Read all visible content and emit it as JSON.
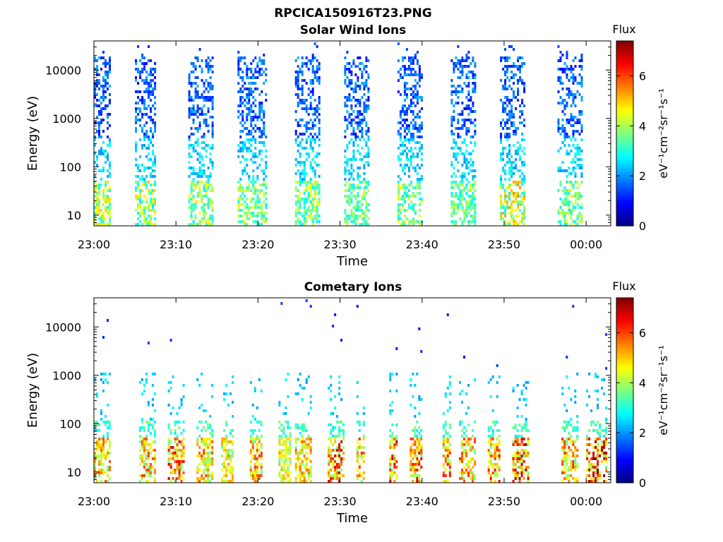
{
  "figure": {
    "title": "RPCICA150916T23.PNG"
  },
  "chart_data": [
    {
      "type": "heatmap",
      "title": "Solar Wind Ions",
      "xlabel": "Time",
      "ylabel": "Energy (eV)",
      "y_scale": "log",
      "xlim_minutes": [
        0,
        63
      ],
      "ylim": [
        6,
        40000
      ],
      "x_tick_labels": [
        "23:00",
        "23:10",
        "23:20",
        "23:30",
        "23:40",
        "23:50",
        "00:00"
      ],
      "x_tick_minutes": [
        0,
        10,
        20,
        30,
        40,
        50,
        60
      ],
      "y_tick_labels": [
        "10",
        "100",
        "1000",
        "10000"
      ],
      "y_tick_values": [
        10,
        100,
        1000,
        10000
      ],
      "colorbar": {
        "label": "Flux",
        "units": "eV⁻¹cm⁻²sr⁻¹s⁻¹",
        "range": [
          0,
          7.4
        ],
        "ticks": [
          0,
          2,
          4,
          6
        ],
        "colormap": "jet"
      },
      "bursts": [
        {
          "start_min": 0.0,
          "end_min": 2.0,
          "peak_flux": 5.0
        },
        {
          "start_min": 5.0,
          "end_min": 7.5,
          "peak_flux": 5.2
        },
        {
          "start_min": 11.5,
          "end_min": 14.5,
          "peak_flux": 4.8
        },
        {
          "start_min": 17.5,
          "end_min": 21.0,
          "peak_flux": 4.6
        },
        {
          "start_min": 24.5,
          "end_min": 27.5,
          "peak_flux": 4.6
        },
        {
          "start_min": 30.5,
          "end_min": 33.5,
          "peak_flux": 4.6
        },
        {
          "start_min": 37.0,
          "end_min": 40.0,
          "peak_flux": 4.6
        },
        {
          "start_min": 43.5,
          "end_min": 46.5,
          "peak_flux": 4.4
        },
        {
          "start_min": 49.5,
          "end_min": 52.5,
          "peak_flux": 5.6
        },
        {
          "start_min": 56.5,
          "end_min": 59.5,
          "peak_flux": 4.8
        }
      ]
    },
    {
      "type": "heatmap",
      "title": "Cometary Ions",
      "xlabel": "Time",
      "ylabel": "Energy (eV)",
      "y_scale": "log",
      "xlim_minutes": [
        0,
        63
      ],
      "ylim": [
        6,
        40000
      ],
      "x_tick_labels": [
        "23:00",
        "23:10",
        "23:20",
        "23:30",
        "23:40",
        "23:50",
        "00:00"
      ],
      "x_tick_minutes": [
        0,
        10,
        20,
        30,
        40,
        50,
        60
      ],
      "y_tick_labels": [
        "10",
        "100",
        "1000",
        "10000"
      ],
      "y_tick_values": [
        10,
        100,
        1000,
        10000
      ],
      "colorbar": {
        "label": "Flux",
        "units": "eV⁻¹cm⁻²sr⁻¹s⁻¹",
        "range": [
          0,
          7.4
        ],
        "ticks": [
          0,
          2,
          4,
          6
        ],
        "colormap": "jet"
      },
      "bursts": [
        {
          "start_min": 0.0,
          "end_min": 2.0,
          "peak_flux": 6.0
        },
        {
          "start_min": 5.5,
          "end_min": 7.5,
          "peak_flux": 6.2
        },
        {
          "start_min": 9.0,
          "end_min": 11.0,
          "peak_flux": 7.0
        },
        {
          "start_min": 12.5,
          "end_min": 14.5,
          "peak_flux": 6.0
        },
        {
          "start_min": 15.5,
          "end_min": 17.0,
          "peak_flux": 5.6
        },
        {
          "start_min": 19.0,
          "end_min": 20.5,
          "peak_flux": 6.2
        },
        {
          "start_min": 22.5,
          "end_min": 24.0,
          "peak_flux": 5.4
        },
        {
          "start_min": 24.5,
          "end_min": 26.5,
          "peak_flux": 5.8
        },
        {
          "start_min": 28.5,
          "end_min": 30.5,
          "peak_flux": 7.0
        },
        {
          "start_min": 32.0,
          "end_min": 33.0,
          "peak_flux": 6.4
        },
        {
          "start_min": 36.0,
          "end_min": 37.0,
          "peak_flux": 7.2
        },
        {
          "start_min": 38.5,
          "end_min": 40.0,
          "peak_flux": 6.8
        },
        {
          "start_min": 42.5,
          "end_min": 43.5,
          "peak_flux": 6.6
        },
        {
          "start_min": 44.5,
          "end_min": 46.5,
          "peak_flux": 6.2
        },
        {
          "start_min": 48.0,
          "end_min": 49.5,
          "peak_flux": 6.8
        },
        {
          "start_min": 51.0,
          "end_min": 53.0,
          "peak_flux": 7.2
        },
        {
          "start_min": 57.0,
          "end_min": 59.0,
          "peak_flux": 6.4
        },
        {
          "start_min": 60.0,
          "end_min": 62.5,
          "peak_flux": 7.4
        }
      ]
    }
  ]
}
